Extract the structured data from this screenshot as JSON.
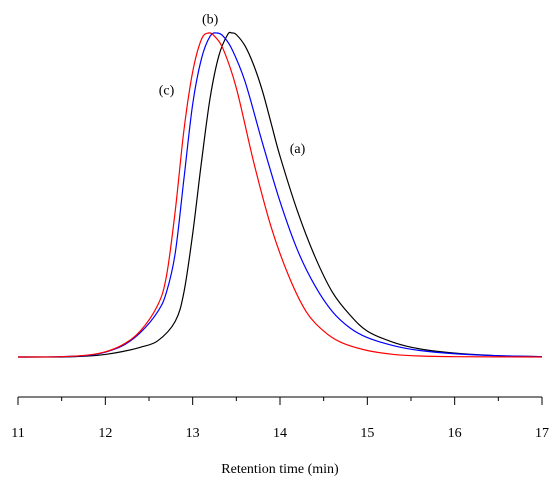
{
  "chart_data": {
    "type": "line",
    "xlabel": "Retention time (min)",
    "ylabel": "",
    "xlim": [
      11,
      17
    ],
    "ylim": [
      0,
      1
    ],
    "x_ticks": [
      11,
      12,
      13,
      14,
      15,
      16,
      17
    ],
    "x_minor_step": 0.5,
    "y_axis_visible": false,
    "grid": false,
    "legend": "none",
    "series": [
      {
        "label": "(a)",
        "color": "#000000",
        "points": [
          [
            11.0,
            0.0
          ],
          [
            11.5,
            0.0
          ],
          [
            11.8,
            0.003
          ],
          [
            12.0,
            0.008
          ],
          [
            12.2,
            0.017
          ],
          [
            12.4,
            0.03
          ],
          [
            12.6,
            0.05
          ],
          [
            12.8,
            0.11
          ],
          [
            12.9,
            0.2
          ],
          [
            13.0,
            0.38
          ],
          [
            13.1,
            0.6
          ],
          [
            13.2,
            0.8
          ],
          [
            13.3,
            0.93
          ],
          [
            13.4,
            0.995
          ],
          [
            13.45,
            1.0
          ],
          [
            13.5,
            0.995
          ],
          [
            13.6,
            0.96
          ],
          [
            13.7,
            0.9
          ],
          [
            13.8,
            0.82
          ],
          [
            13.9,
            0.72
          ],
          [
            14.0,
            0.62
          ],
          [
            14.2,
            0.45
          ],
          [
            14.4,
            0.31
          ],
          [
            14.6,
            0.2
          ],
          [
            14.8,
            0.13
          ],
          [
            15.0,
            0.08
          ],
          [
            15.3,
            0.045
          ],
          [
            15.6,
            0.025
          ],
          [
            16.0,
            0.012
          ],
          [
            16.5,
            0.004
          ],
          [
            17.0,
            0.001
          ]
        ]
      },
      {
        "label": "(b)",
        "color": "#0000ff",
        "points": [
          [
            11.0,
            0.0
          ],
          [
            11.5,
            0.001
          ],
          [
            11.8,
            0.005
          ],
          [
            12.0,
            0.015
          ],
          [
            12.2,
            0.035
          ],
          [
            12.4,
            0.075
          ],
          [
            12.6,
            0.14
          ],
          [
            12.7,
            0.2
          ],
          [
            12.8,
            0.32
          ],
          [
            12.9,
            0.55
          ],
          [
            13.0,
            0.78
          ],
          [
            13.1,
            0.92
          ],
          [
            13.2,
            0.99
          ],
          [
            13.28,
            1.0
          ],
          [
            13.35,
            0.99
          ],
          [
            13.45,
            0.95
          ],
          [
            13.6,
            0.85
          ],
          [
            13.8,
            0.66
          ],
          [
            14.0,
            0.48
          ],
          [
            14.2,
            0.33
          ],
          [
            14.4,
            0.22
          ],
          [
            14.6,
            0.14
          ],
          [
            14.8,
            0.09
          ],
          [
            15.0,
            0.06
          ],
          [
            15.3,
            0.035
          ],
          [
            15.6,
            0.02
          ],
          [
            16.0,
            0.01
          ],
          [
            16.5,
            0.004
          ],
          [
            17.0,
            0.001
          ]
        ]
      },
      {
        "label": "(c)",
        "color": "#ff0000",
        "points": [
          [
            11.0,
            0.0
          ],
          [
            11.5,
            0.001
          ],
          [
            11.8,
            0.006
          ],
          [
            12.0,
            0.016
          ],
          [
            12.2,
            0.038
          ],
          [
            12.4,
            0.08
          ],
          [
            12.6,
            0.16
          ],
          [
            12.7,
            0.25
          ],
          [
            12.8,
            0.45
          ],
          [
            12.9,
            0.7
          ],
          [
            13.0,
            0.88
          ],
          [
            13.1,
            0.98
          ],
          [
            13.18,
            1.0
          ],
          [
            13.25,
            0.99
          ],
          [
            13.35,
            0.95
          ],
          [
            13.5,
            0.83
          ],
          [
            13.7,
            0.6
          ],
          [
            13.9,
            0.4
          ],
          [
            14.1,
            0.25
          ],
          [
            14.3,
            0.14
          ],
          [
            14.5,
            0.08
          ],
          [
            14.7,
            0.045
          ],
          [
            15.0,
            0.02
          ],
          [
            15.3,
            0.008
          ],
          [
            15.6,
            0.003
          ],
          [
            16.0,
            0.001
          ],
          [
            17.0,
            0.0
          ]
        ]
      }
    ],
    "annotations": [
      {
        "text": "(a)",
        "x": 14.2,
        "y": 0.63
      },
      {
        "text": "(b)",
        "x": 13.2,
        "y": 1.03
      },
      {
        "text": "(c)",
        "x": 12.7,
        "y": 0.81
      }
    ]
  }
}
